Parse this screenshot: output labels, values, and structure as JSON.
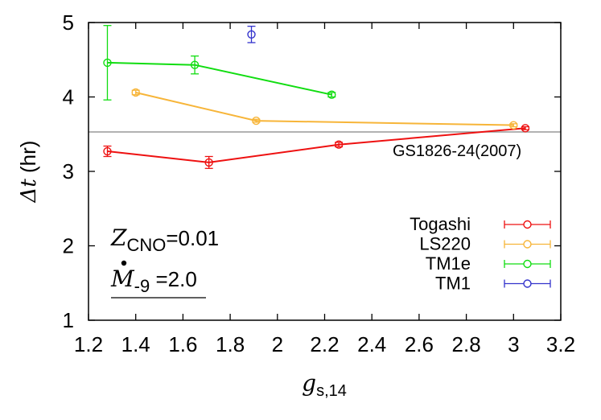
{
  "chart_data": {
    "type": "line",
    "xlabel": {
      "symbol": "g",
      "subscript": "s,14"
    },
    "ylabel": {
      "symbol": "Δt",
      "unit": "(hr)"
    },
    "xlim": [
      1.2,
      3.2
    ],
    "ylim": [
      1,
      5
    ],
    "xticks": [
      1.2,
      1.4,
      1.6,
      1.8,
      2,
      2.2,
      2.4,
      2.6,
      2.8,
      3,
      3.2
    ],
    "yticks": [
      1,
      2,
      3,
      4,
      5
    ],
    "xtick_labels": [
      "1.2",
      "1.4",
      "1.6",
      "1.8",
      "2",
      "2.2",
      "2.4",
      "2.6",
      "2.8",
      "3",
      "3.2"
    ],
    "ytick_labels": [
      "1",
      "2",
      "3",
      "4",
      "5"
    ],
    "grid": false,
    "legend_position": "bottom-right",
    "reference_line": {
      "y": 3.53,
      "label": "GS1826-24(2007)",
      "color": "#999999"
    },
    "annotations": {
      "zcno": {
        "symbol": "Z",
        "subscript": "CNO",
        "value": "=0.01"
      },
      "mdot": {
        "symbol": "M",
        "subscript": "-9",
        "value": " =2.0"
      }
    },
    "series": [
      {
        "name": "Togashi",
        "color": "#ee1111",
        "points": [
          {
            "x": 1.28,
            "y": 3.27,
            "err": 0.07
          },
          {
            "x": 1.71,
            "y": 3.12,
            "err": 0.08
          },
          {
            "x": 2.26,
            "y": 3.36,
            "err": 0.03
          },
          {
            "x": 3.05,
            "y": 3.58,
            "err": 0.02
          }
        ]
      },
      {
        "name": "LS220",
        "color": "#f7b539",
        "points": [
          {
            "x": 1.4,
            "y": 4.06,
            "err": 0.03
          },
          {
            "x": 1.91,
            "y": 3.68,
            "err": 0.02
          },
          {
            "x": 3.0,
            "y": 3.62,
            "err": 0.02
          }
        ]
      },
      {
        "name": "TM1e",
        "color": "#11dd11",
        "points": [
          {
            "x": 1.28,
            "y": 4.46,
            "err": 0.5
          },
          {
            "x": 1.65,
            "y": 4.43,
            "err": 0.12
          },
          {
            "x": 2.23,
            "y": 4.03,
            "err": 0.03
          }
        ]
      },
      {
        "name": "TM1",
        "color": "#3333cc",
        "points": [
          {
            "x": 1.89,
            "y": 4.84,
            "err": 0.11
          }
        ]
      }
    ]
  }
}
